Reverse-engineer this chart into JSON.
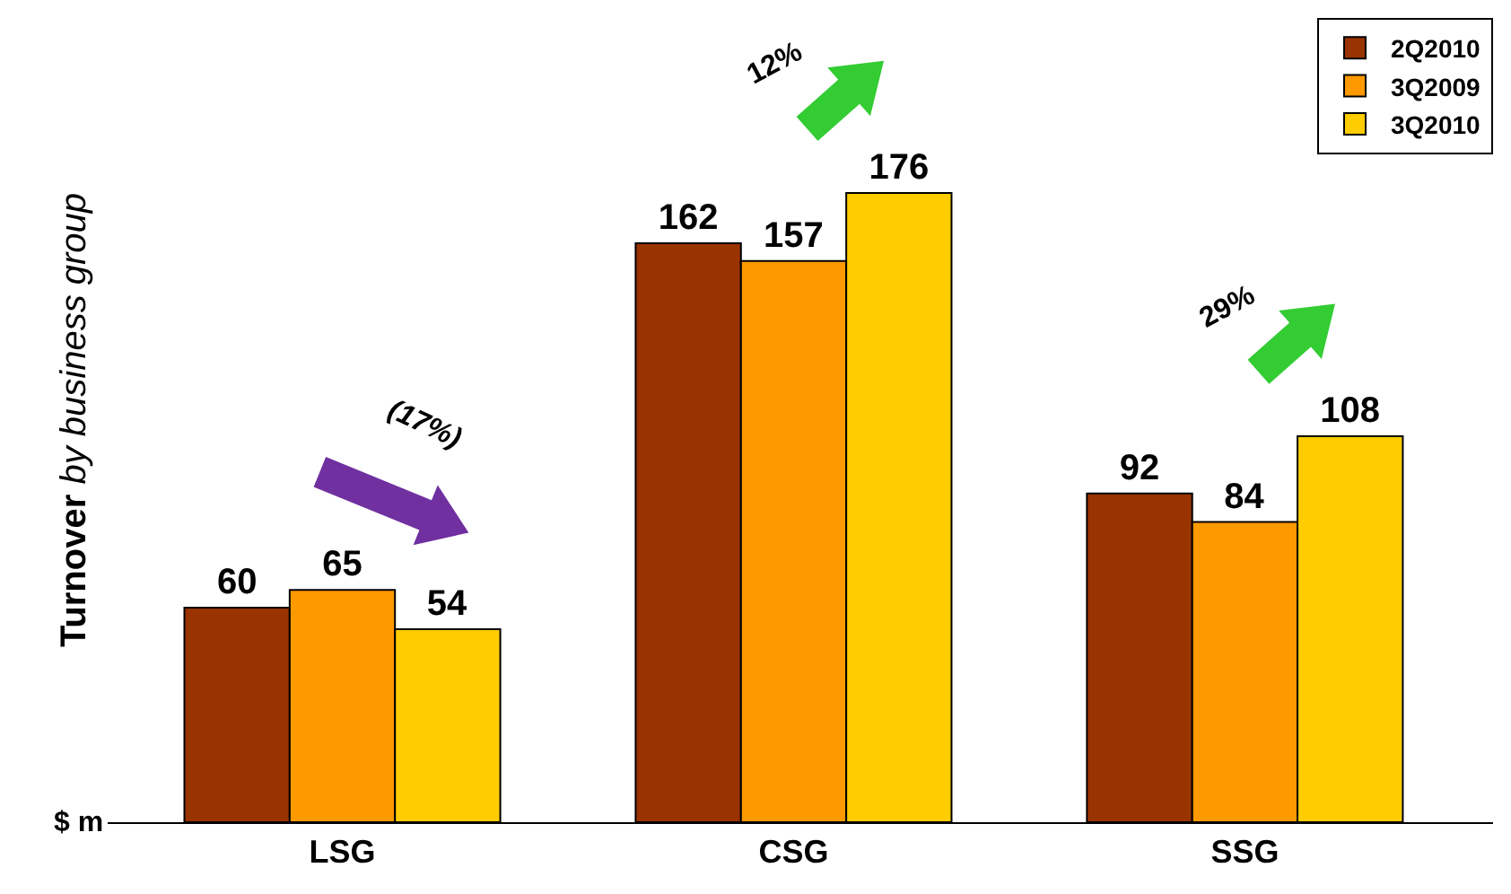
{
  "chart_data": {
    "type": "bar",
    "ylabel": "Turnover by business group",
    "categories": [
      "LSG",
      "CSG",
      "SSG"
    ],
    "series": [
      {
        "name": "2Q2010",
        "color": "#993300",
        "values": [
          60,
          162,
          92
        ]
      },
      {
        "name": "3Q2009",
        "color": "#ff9900",
        "values": [
          65,
          157,
          84
        ]
      },
      {
        "name": "3Q2010",
        "color": "#ffcc00",
        "values": [
          54,
          176,
          108
        ]
      }
    ],
    "ylim": [
      0,
      225
    ],
    "data_labels": true,
    "legend": "top right",
    "tick_labels": "x",
    "annotations": [
      "$ m",
      "(17%)",
      "12%",
      "29%"
    ]
  }
}
